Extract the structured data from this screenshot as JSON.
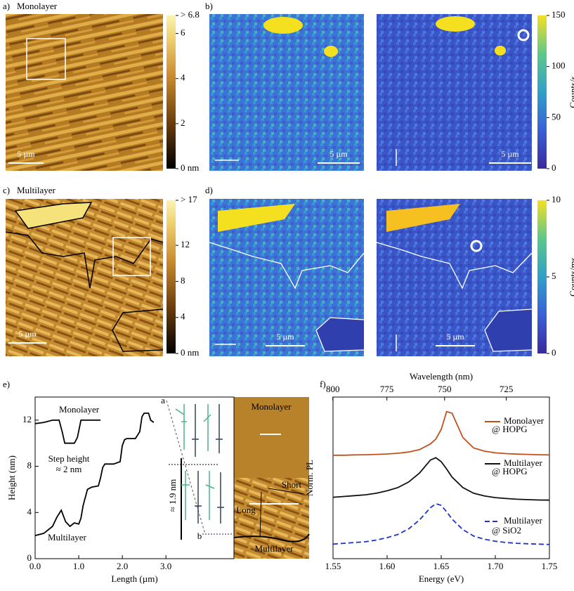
{
  "panels": [
    {
      "label": "a)",
      "title": "Monolayer",
      "scalebars": [
        "5 µm"
      ],
      "colorbar": {
        "lim": [
          0,
          6.8
        ],
        "ticks": [
          {
            "value": 6.8,
            "label": "> 6.8"
          },
          6,
          4,
          2,
          {
            "value": 0,
            "label": "0 nm"
          }
        ]
      }
    },
    {
      "label": "b)",
      "scalebars": [
        "5 µm",
        "5 µm"
      ],
      "colorbar": {
        "title": "Counts/s",
        "lim": [
          0,
          150
        ],
        "ticks": [
          0,
          50,
          100,
          150
        ]
      }
    },
    {
      "label": "c)",
      "title": "Multilayer",
      "scalebars": [
        "5 µm"
      ],
      "colorbar": {
        "lim": [
          0,
          17
        ],
        "ticks": [
          {
            "value": 17,
            "label": "> 17"
          },
          12,
          8,
          4,
          {
            "value": 0,
            "label": "0 nm"
          }
        ]
      }
    },
    {
      "label": "d)",
      "scalebars": [
        "5 µm",
        "5 µm"
      ],
      "colorbar": {
        "title": "Counts/ms",
        "lim": [
          0,
          10
        ],
        "ticks": [
          0,
          5,
          10
        ]
      }
    }
  ],
  "chart_data": [
    {
      "type": "line",
      "label": "e)",
      "xlabel": "Length (µm)",
      "ylabel": "Height (nm)",
      "xlim": [
        0,
        4.56
      ],
      "ylim": [
        0,
        14
      ],
      "xticks": [
        {
          "value": 0,
          "label": "0.0"
        },
        {
          "value": 1,
          "label": "1.0"
        },
        {
          "value": 2,
          "label": "2.0"
        },
        {
          "value": 3,
          "label": "3.0"
        }
      ],
      "yticks": [
        0,
        4,
        8,
        12
      ],
      "series": [
        {
          "name": "Monolayer",
          "color": "#000000",
          "x": [
            0,
            0.2,
            0.4,
            0.55,
            0.62,
            0.68,
            0.9,
            0.97,
            1.05,
            1.2,
            1.5
          ],
          "values": [
            11.7,
            11.8,
            12,
            12,
            11,
            10,
            10,
            10.5,
            12,
            12,
            12
          ]
        },
        {
          "name": "Multilayer",
          "color": "#000000",
          "x": [
            0,
            0.2,
            0.4,
            0.5,
            0.6,
            0.7,
            0.8,
            0.9,
            1.0,
            1.05,
            1.1,
            1.2,
            1.3,
            1.45,
            1.5,
            1.55,
            1.6,
            1.8,
            1.95,
            2.0,
            2.05,
            2.1,
            2.3,
            2.4,
            2.45,
            2.5,
            2.6,
            2.65,
            2.72
          ],
          "values": [
            2,
            2.2,
            2.8,
            3.6,
            4.2,
            3.2,
            2.8,
            3.1,
            3.0,
            3.5,
            4.6,
            6.0,
            6.2,
            6.3,
            7,
            7.9,
            8.2,
            8.2,
            8.4,
            9.8,
            10.3,
            10.4,
            10.4,
            11,
            12.3,
            12.6,
            12.6,
            12,
            11.8
          ]
        }
      ],
      "annotations": [
        "Step height",
        "≈ 2 nm",
        "≈ 1.9 nm",
        "a",
        "b"
      ],
      "inset_labels": [
        "Monolayer",
        "Short",
        "Long",
        "Multilayer"
      ]
    },
    {
      "type": "line",
      "label": "f)",
      "xlabel": "Energy (eV)",
      "x2label": "Wavelength (nm)",
      "ylabel": "Norm. PL",
      "xlim": [
        1.55,
        1.75
      ],
      "ylim": [
        0,
        100
      ],
      "xticks": [
        1.55,
        {
          "value": 1.6,
          "label": "1.60"
        },
        1.65,
        {
          "value": 1.7,
          "label": "1.70"
        },
        1.75
      ],
      "x2ticks": [
        800,
        775,
        750,
        725
      ],
      "x": [
        1.55,
        1.56,
        1.57,
        1.58,
        1.59,
        1.6,
        1.61,
        1.62,
        1.63,
        1.64,
        1.645,
        1.65,
        1.655,
        1.66,
        1.67,
        1.68,
        1.69,
        1.7,
        1.71,
        1.72,
        1.73,
        1.74,
        1.75
      ],
      "series": [
        {
          "name": "Monolayer",
          "substrate": "@ HOPG",
          "color": "#c0501e",
          "dash": false,
          "values": [
            64,
            64,
            64.2,
            64.3,
            64.5,
            64.8,
            65.2,
            66,
            67.5,
            71,
            74,
            80,
            91,
            90,
            75,
            68.5,
            66.5,
            65.5,
            65,
            64.7,
            64.5,
            64.3,
            64.2
          ]
        },
        {
          "name": "Multilayer",
          "substrate": "@ HOPG",
          "color": "#111111",
          "dash": false,
          "values": [
            38,
            38.5,
            39,
            39.5,
            40.5,
            42,
            44,
            47.5,
            53,
            61,
            62.5,
            60,
            55.5,
            50.5,
            44,
            40.5,
            38.8,
            37.8,
            37.2,
            36.8,
            36.5,
            36.3,
            36.2
          ]
        },
        {
          "name": "Multilayer",
          "substrate": "@ SiO2",
          "color": "#2233cc",
          "dash": true,
          "values": [
            9,
            9.5,
            10,
            10.5,
            11.5,
            13,
            15,
            18.5,
            24,
            31.5,
            34,
            33,
            29,
            24.5,
            18,
            14,
            12,
            10.8,
            10,
            9.5,
            9.2,
            9,
            8.8
          ]
        }
      ]
    }
  ]
}
